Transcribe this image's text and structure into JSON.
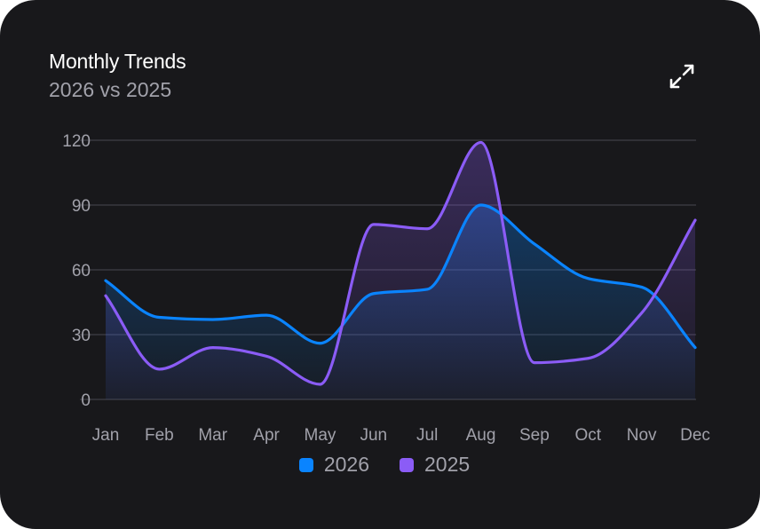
{
  "card": {
    "title": "Monthly Trends",
    "subtitle": "2026 vs 2025",
    "expand_icon": "expand-arrows-icon"
  },
  "colors": {
    "background": "#18181b",
    "series_2026": "#0a84ff",
    "series_2025": "#8b5cf6",
    "grid": "#3f3f46",
    "text_muted": "#a1a1aa"
  },
  "chart_data": {
    "type": "area",
    "categories": [
      "Jan",
      "Feb",
      "Mar",
      "Apr",
      "May",
      "Jun",
      "Jul",
      "Aug",
      "Sep",
      "Oct",
      "Nov",
      "Dec"
    ],
    "series": [
      {
        "name": "2026",
        "values": [
          55,
          38,
          37,
          39,
          26,
          49,
          51,
          90,
          72,
          56,
          52,
          24
        ]
      },
      {
        "name": "2025",
        "values": [
          48,
          14,
          24,
          20,
          7,
          81,
          79,
          119,
          17,
          19,
          40,
          83
        ]
      }
    ],
    "yticks": [
      0,
      30,
      60,
      90,
      120
    ],
    "ylim": [
      0,
      120
    ],
    "grid": true,
    "legend_position": "bottom-center"
  }
}
